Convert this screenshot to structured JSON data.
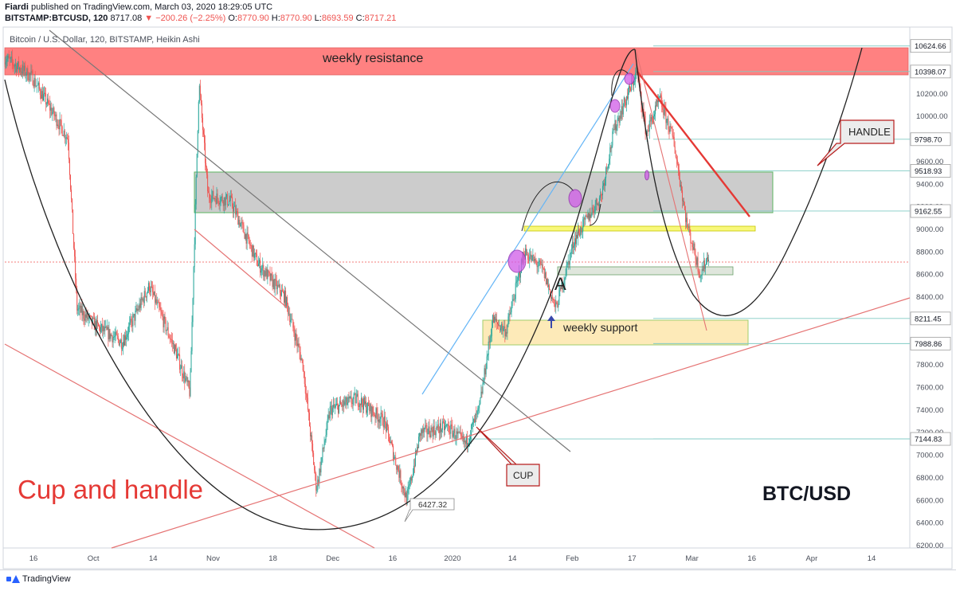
{
  "header": {
    "author": "Fiardi",
    "published_text": "published on TradingView.com, March 03, 2020 18:29:05 UTC"
  },
  "ohlc": {
    "symbol": "BITSTAMP:BTCUSD, 120",
    "last": "8717.08",
    "change": "▼ −200.26 (−2.25%)",
    "open_label": "O:",
    "open": "8770.90",
    "high_label": "H:",
    "high": "8770.90",
    "low_label": "L:",
    "low": "8693.59",
    "close_label": "C:",
    "close": "8717.21"
  },
  "symbol_description": "Bitcoin / U.S. Dollar, 120, BITSTAMP, Heikin Ashi",
  "footer": {
    "logo_text": "TradingView"
  },
  "colors": {
    "up": "#26a69a",
    "down": "#ef5350",
    "resistance": "#ff7b7b",
    "grey_zone": "#c7c7c7",
    "support_zone": "#fde9b5",
    "trend_red": "#e53935",
    "blue_line": "#64b5f6"
  },
  "chart_data": {
    "type": "candlestick",
    "candle_style": "Heikin Ashi",
    "ylim": [
      6200,
      10700
    ],
    "y_ticks": [
      6200,
      6400,
      6600,
      6800,
      7000,
      7200,
      7400,
      7600,
      7800,
      8000,
      8200,
      8400,
      8600,
      8800,
      9000,
      9200,
      9400,
      9600,
      9800,
      10000,
      10200,
      10400,
      10600
    ],
    "y_tick_labels": [
      "6200.00",
      "6400.00",
      "6600.00",
      "6800.00",
      "7000.00",
      "7200.00",
      "7400.00",
      "7600.00",
      "7800.00",
      "8000.00",
      "8200.00",
      "8400.00",
      "8600.00",
      "8800.00",
      "9000.00",
      "9200.00",
      "9400.00",
      "9600.00",
      "9800.00",
      "10000.00",
      "10200.00",
      "10400.00",
      "10600.00"
    ],
    "x_tick_labels": [
      "16",
      "Oct",
      "14",
      "Nov",
      "18",
      "Dec",
      "16",
      "2020",
      "14",
      "Feb",
      "17",
      "Mar",
      "16",
      "Apr",
      "14"
    ],
    "price_levels": [
      {
        "value": 10624.66,
        "label": "10624.66"
      },
      {
        "value": 10398.07,
        "label": "10398.07"
      },
      {
        "value": 9798.7,
        "label": "9798.70"
      },
      {
        "value": 9518.93,
        "label": "9518.93"
      },
      {
        "value": 9162.55,
        "label": "9162.55"
      },
      {
        "value": 8211.45,
        "label": "8211.45"
      },
      {
        "value": 7988.86,
        "label": "7988.86"
      },
      {
        "value": 7144.83,
        "label": "7144.83"
      }
    ],
    "annotations": {
      "resistance": "weekly resistance",
      "support": "weekly support",
      "point_a": "A",
      "handle": "HANDLE",
      "cup": "CUP",
      "title_left": "Cup and handle",
      "title_right": "BTC/USD",
      "low_label": "6427.32"
    },
    "anchors": [
      {
        "x": 0.0,
        "y": 10520
      },
      {
        "x": 0.03,
        "y": 10350
      },
      {
        "x": 0.07,
        "y": 9800
      },
      {
        "x": 0.08,
        "y": 8300
      },
      {
        "x": 0.1,
        "y": 8150
      },
      {
        "x": 0.13,
        "y": 8000
      },
      {
        "x": 0.16,
        "y": 8500
      },
      {
        "x": 0.19,
        "y": 7900
      },
      {
        "x": 0.205,
        "y": 7550
      },
      {
        "x": 0.215,
        "y": 10300
      },
      {
        "x": 0.225,
        "y": 9300
      },
      {
        "x": 0.25,
        "y": 9250
      },
      {
        "x": 0.28,
        "y": 8700
      },
      {
        "x": 0.31,
        "y": 8400
      },
      {
        "x": 0.33,
        "y": 7800
      },
      {
        "x": 0.345,
        "y": 6700
      },
      {
        "x": 0.36,
        "y": 7400
      },
      {
        "x": 0.39,
        "y": 7500
      },
      {
        "x": 0.42,
        "y": 7300
      },
      {
        "x": 0.445,
        "y": 6600
      },
      {
        "x": 0.46,
        "y": 7200
      },
      {
        "x": 0.49,
        "y": 7250
      },
      {
        "x": 0.51,
        "y": 7100
      },
      {
        "x": 0.525,
        "y": 7400
      },
      {
        "x": 0.54,
        "y": 8200
      },
      {
        "x": 0.555,
        "y": 8100
      },
      {
        "x": 0.575,
        "y": 8800
      },
      {
        "x": 0.595,
        "y": 8650
      },
      {
        "x": 0.61,
        "y": 8300
      },
      {
        "x": 0.63,
        "y": 8900
      },
      {
        "x": 0.66,
        "y": 9300
      },
      {
        "x": 0.675,
        "y": 9900
      },
      {
        "x": 0.69,
        "y": 10200
      },
      {
        "x": 0.7,
        "y": 10400
      },
      {
        "x": 0.71,
        "y": 9850
      },
      {
        "x": 0.725,
        "y": 10150
      },
      {
        "x": 0.74,
        "y": 9800
      },
      {
        "x": 0.755,
        "y": 9050
      },
      {
        "x": 0.77,
        "y": 8600
      },
      {
        "x": 0.78,
        "y": 8800
      }
    ]
  }
}
